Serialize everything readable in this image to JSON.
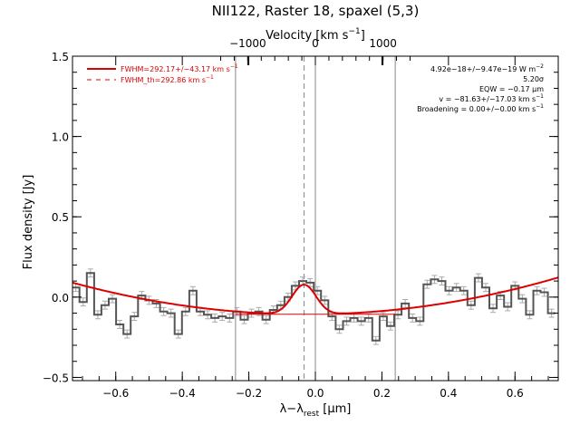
{
  "chart_data": {
    "type": "line",
    "title": "NII122, Raster 18, spaxel (5,3)",
    "xlabel": "λ−λ",
    "xlabel_sub": "rest",
    "xlabel_unit": " [μm]",
    "ylabel": "Flux density [Jy]",
    "top_axis_label": "Velocity [km s",
    "top_axis_sup": "−1",
    "top_axis_label_end": "]",
    "xlim": [
      -0.73,
      0.73
    ],
    "ylim": [
      -0.52,
      1.5
    ],
    "x_ticks": [
      -0.6,
      -0.4,
      -0.2,
      0.0,
      0.2,
      0.4,
      0.6
    ],
    "x_tick_labels": [
      "−0.6",
      "−0.4",
      "−0.2",
      "0.0",
      "0.2",
      "0.4",
      "0.6"
    ],
    "y_ticks": [
      -0.5,
      0.0,
      0.5,
      1.0,
      1.5
    ],
    "y_tick_labels": [
      "−0.5",
      "0.0",
      "0.5",
      "1.0",
      "1.5"
    ],
    "top_ticks_velocity": [
      -1000,
      0,
      1000
    ],
    "top_tick_labels": [
      "−1000",
      "0",
      "1000"
    ],
    "top_axis_km_per_um": 4920,
    "vertical_lines_solid": [
      -0.24,
      0.0,
      0.24
    ],
    "vertical_line_dashed": -0.034,
    "legend": {
      "placement": "top-left",
      "entries": [
        {
          "text": "FWHM=292.17+/−43.17 km s",
          "sup": "−1",
          "style": "solid"
        },
        {
          "text": "FWHM_th=292.86 km s",
          "sup": "−1",
          "style": "dashed"
        }
      ]
    },
    "annotations": {
      "placement": "top-right",
      "lines": [
        {
          "text": "4.92e−18+/−9.47e−19 W m",
          "sup": "−2"
        },
        {
          "text": "5.20σ",
          "sup": ""
        },
        {
          "text": "EQW = −0.17 μm",
          "sup": ""
        },
        {
          "text": "v = −81.63+/−17.03 km s",
          "sup": "−1"
        },
        {
          "text": "Broadening = 0.00+/−0.00 km s",
          "sup": "−1"
        }
      ]
    },
    "colors": {
      "fit": "#dd0000",
      "data": "#555555",
      "errorbars": "#aaaaaa",
      "vlines": "#888888"
    },
    "baseline_fit": {
      "a": -0.107,
      "b": 0.022,
      "c": 0.4
    },
    "gaussian_fit": {
      "center": -0.034,
      "sigma": 0.036,
      "amplitude": 0.185
    },
    "continuum_line": {
      "x_range": [
        -0.24,
        0.24
      ],
      "y": -0.107
    },
    "spectrum": {
      "x": [
        -0.72,
        -0.698,
        -0.676,
        -0.654,
        -0.632,
        -0.61,
        -0.588,
        -0.566,
        -0.544,
        -0.522,
        -0.5,
        -0.478,
        -0.456,
        -0.434,
        -0.412,
        -0.39,
        -0.368,
        -0.346,
        -0.324,
        -0.302,
        -0.28,
        -0.258,
        -0.236,
        -0.214,
        -0.192,
        -0.17,
        -0.148,
        -0.126,
        -0.104,
        -0.082,
        -0.06,
        -0.038,
        -0.016,
        0.006,
        0.028,
        0.05,
        0.072,
        0.094,
        0.116,
        0.138,
        0.16,
        0.182,
        0.204,
        0.226,
        0.248,
        0.27,
        0.292,
        0.314,
        0.336,
        0.358,
        0.38,
        0.402,
        0.424,
        0.446,
        0.468,
        0.49,
        0.512,
        0.534,
        0.556,
        0.578,
        0.6,
        0.622,
        0.644,
        0.666,
        0.688,
        0.71
      ],
      "y": [
        0.06,
        -0.03,
        0.15,
        -0.11,
        -0.05,
        -0.01,
        -0.17,
        -0.23,
        -0.12,
        0.01,
        -0.02,
        -0.04,
        -0.09,
        -0.1,
        -0.23,
        -0.09,
        0.04,
        -0.09,
        -0.11,
        -0.13,
        -0.12,
        -0.13,
        -0.09,
        -0.14,
        -0.1,
        -0.09,
        -0.14,
        -0.08,
        -0.05,
        0.0,
        0.07,
        0.1,
        0.09,
        0.04,
        -0.02,
        -0.12,
        -0.2,
        -0.15,
        -0.13,
        -0.15,
        -0.13,
        -0.27,
        -0.12,
        -0.18,
        -0.11,
        -0.04,
        -0.13,
        -0.15,
        0.08,
        0.11,
        0.1,
        0.04,
        0.06,
        0.04,
        -0.05,
        0.12,
        0.06,
        -0.07,
        0.01,
        -0.06,
        0.07,
        -0.01,
        -0.11,
        0.04,
        0.03,
        -0.1
      ],
      "error": 0.025
    }
  }
}
